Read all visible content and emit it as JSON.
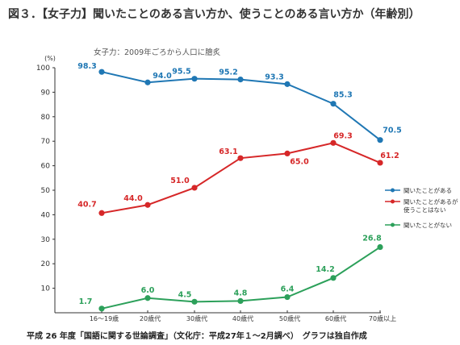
{
  "title": "図３．【女子力】聞いたことのある言い方か、使うことのある言い方か（年齢別）",
  "subtitle": "女子力：2009年ごろから人口に膾炙",
  "footnote": "平成 26 年度「国語に関する世論調査」（文化庁：平成27年１～2月調べ）　グラフは独自作成",
  "colors": {
    "blue": "#1f77b4",
    "red": "#d62728",
    "green": "#2ca05a",
    "axis": "#333333"
  },
  "chart_data": {
    "type": "line",
    "categories": [
      "16～19歳",
      "20歳代",
      "30歳代",
      "40歳代",
      "50歳代",
      "60歳代",
      "70歳以上"
    ],
    "y_unit": "(%)",
    "ylim": [
      0,
      100
    ],
    "yticks": [
      10,
      20,
      30,
      40,
      50,
      60,
      70,
      80,
      90,
      100
    ],
    "grid": false,
    "legend_position": "right",
    "series": [
      {
        "name": "聞いたことがある",
        "color": "#1f77b4",
        "values": [
          98.3,
          94.0,
          95.5,
          95.2,
          93.3,
          85.3,
          70.5
        ],
        "labels": [
          "98.3",
          "94.0",
          "95.5",
          "95.2",
          "93.3",
          "85.3",
          "70.5"
        ]
      },
      {
        "name": "聞いたことがあるが使うことはない",
        "color": "#d62728",
        "values": [
          40.7,
          44.0,
          51.0,
          63.1,
          65.0,
          69.3,
          61.2
        ],
        "labels": [
          "40.7",
          "44.0",
          "51.0",
          "63.1",
          "65.0",
          "69.3",
          "61.2"
        ]
      },
      {
        "name": "聞いたことがない",
        "color": "#2ca05a",
        "values": [
          1.7,
          6.0,
          4.5,
          4.8,
          6.4,
          14.2,
          26.8
        ],
        "labels": [
          "1.7",
          "6.0",
          "4.5",
          "4.8",
          "6.4",
          "14.2",
          "26.8"
        ]
      }
    ],
    "legend": [
      {
        "lines": [
          "聞いたことがある"
        ]
      },
      {
        "lines": [
          "聞いたことがあるが",
          "使うことはない"
        ]
      },
      {
        "lines": [
          "聞いたことがない"
        ]
      }
    ]
  }
}
